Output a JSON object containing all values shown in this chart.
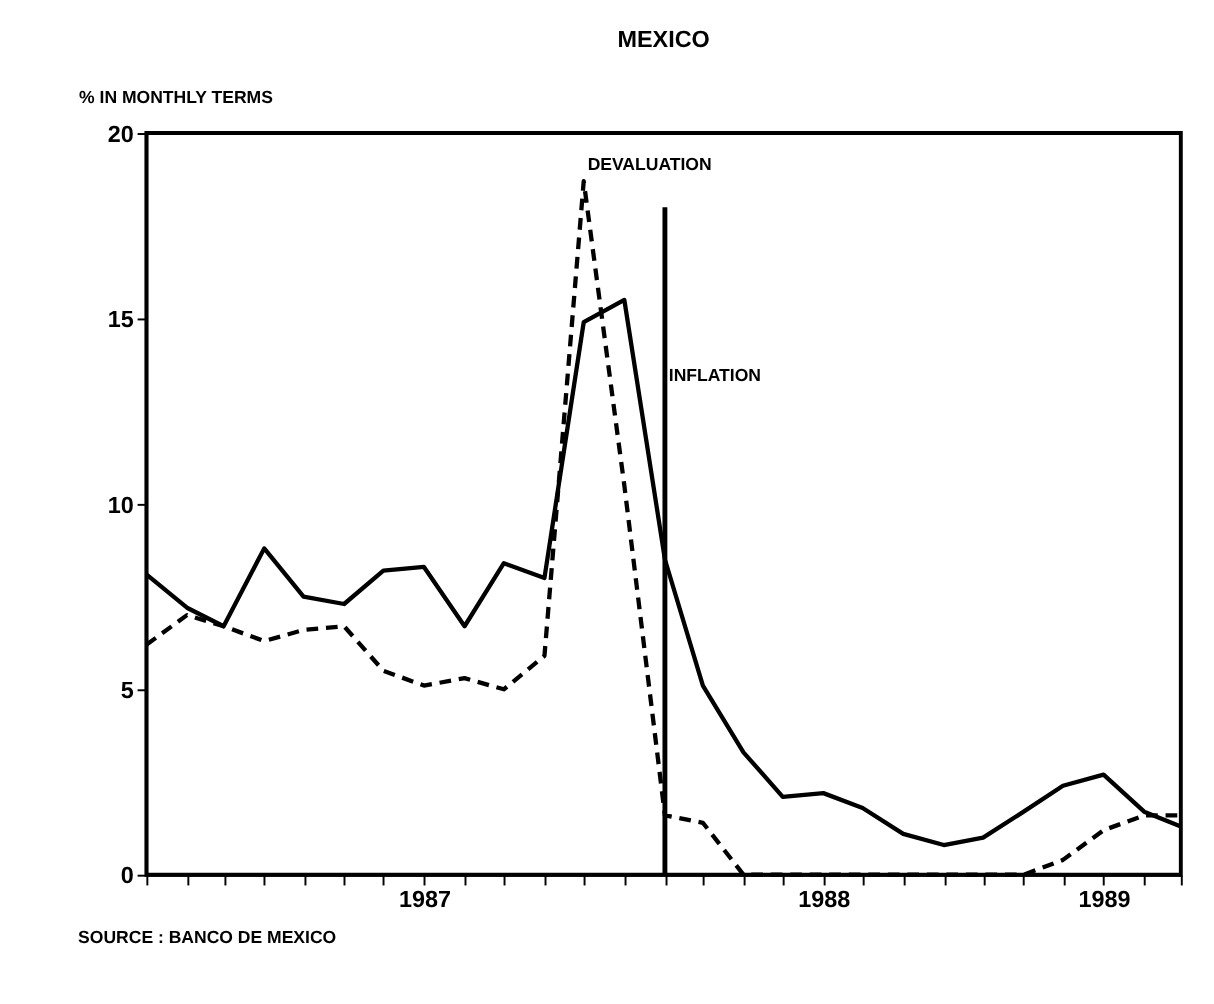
{
  "chart_data": {
    "type": "line",
    "title": "MEXICO",
    "ylabel": "% IN MONTHLY TERMS",
    "x": [
      "1987-01",
      "1987-02",
      "1987-03",
      "1987-04",
      "1987-05",
      "1987-06",
      "1987-07",
      "1987-08",
      "1987-09",
      "1987-10",
      "1987-11",
      "1987-12",
      "1988-01",
      "1988-02",
      "1988-03",
      "1988-04",
      "1988-05",
      "1988-06",
      "1988-07",
      "1988-08",
      "1988-09",
      "1988-10",
      "1988-11",
      "1988-12",
      "1989-01",
      "1989-02",
      "1989-03"
    ],
    "series": [
      {
        "color": "#000000",
        "line_style": "solid",
        "values": [
          8.1,
          7.2,
          6.7,
          8.8,
          7.5,
          7.3,
          8.2,
          8.3,
          6.7,
          8.4,
          8.0,
          14.9,
          15.5,
          8.5,
          5.1,
          3.3,
          2.1,
          2.2,
          1.8,
          1.1,
          0.8,
          1.0,
          1.7,
          2.4,
          2.7,
          1.7,
          1.3
        ]
      },
      {
        "color": "#000000",
        "line_style": "dashed",
        "values": [
          6.2,
          7.0,
          6.7,
          6.3,
          6.6,
          6.7,
          5.5,
          5.1,
          5.3,
          5.0,
          5.9,
          18.7,
          10.5,
          1.6,
          1.4,
          0,
          0,
          0,
          0,
          0,
          0,
          0,
          0,
          0.4,
          1.2,
          1.6,
          1.6
        ]
      }
    ],
    "xlim": [
      "1987-01",
      "1989-03"
    ],
    "xticks": [
      {
        "value": "1987-01",
        "label": null
      },
      {
        "value": "1987-02",
        "label": null
      },
      {
        "value": "1987-03",
        "label": null
      },
      {
        "value": "1987-04",
        "label": null
      },
      {
        "value": "1987-05",
        "label": null
      },
      {
        "value": "1987-06",
        "label": null
      },
      {
        "value": "1987-07",
        "label": null
      },
      {
        "value": "1987-08",
        "label": "1987"
      },
      {
        "value": "1987-09",
        "label": null
      },
      {
        "value": "1987-10",
        "label": null
      },
      {
        "value": "1987-11",
        "label": null
      },
      {
        "value": "1987-12",
        "label": null
      },
      {
        "value": "1988-01",
        "label": null
      },
      {
        "value": "1988-02",
        "label": null
      },
      {
        "value": "1988-03",
        "label": null
      },
      {
        "value": "1988-04",
        "label": null
      },
      {
        "value": "1988-05",
        "label": null
      },
      {
        "value": "1988-06",
        "label": "1988"
      },
      {
        "value": "1988-07",
        "label": null
      },
      {
        "value": "1988-08",
        "label": null
      },
      {
        "value": "1988-09",
        "label": null
      },
      {
        "value": "1988-10",
        "label": null
      },
      {
        "value": "1988-11",
        "label": null
      },
      {
        "value": "1988-12",
        "label": null
      },
      {
        "value": "1989-01",
        "label": "1989"
      },
      {
        "value": "1989-02",
        "label": null
      },
      {
        "value": "1989-03",
        "label": null
      }
    ],
    "ylim": [
      0,
      20
    ],
    "yticks": [
      0,
      5,
      10,
      15,
      20
    ],
    "grid": false,
    "marker": "none",
    "ref_lines": [
      {
        "axis": "x",
        "value": "1988-02",
        "label": null,
        "color": "#000000"
      }
    ],
    "annotations": [
      {
        "text": "DEVALUATION",
        "x": "1987-12",
        "y": 18.7
      },
      {
        "text": "INFLATION",
        "x": "1988-02",
        "y": 13
      },
      "SOURCE : BANCO DE MEXICO"
    ]
  }
}
